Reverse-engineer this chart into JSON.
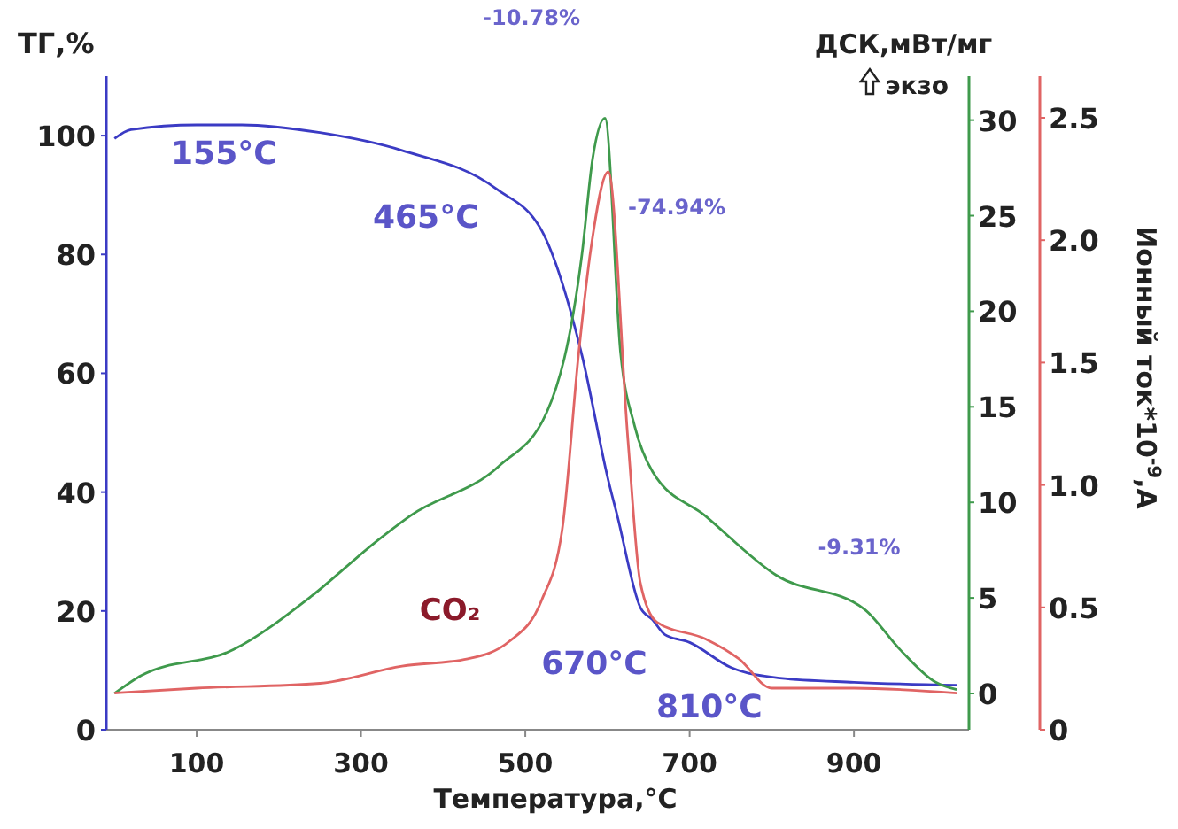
{
  "chart_data": {
    "type": "line",
    "ylabel": "ТГ,%",
    "y2label": "ДСК,мВт/мг",
    "y3label": "Ионный ток*10$^{-9}$,A",
    "xlabel": "Температура,°C",
    "xlim": [
      -10,
      1040
    ],
    "xticks": [
      100,
      300,
      500,
      700,
      900
    ],
    "ylim": [
      0,
      110
    ],
    "yticks": [
      0,
      20,
      40,
      60,
      80,
      100
    ],
    "y2lim": [
      -1.9,
      32.3
    ],
    "y2ticks": [
      0,
      5,
      10,
      15,
      20,
      25,
      30
    ],
    "y3lim": [
      0,
      2.67
    ],
    "y3ticks": [
      0,
      {
        "value": 0.5,
        "label": "0.5"
      },
      {
        "value": 1,
        "label": "1.0"
      },
      {
        "value": 1.5,
        "label": "1.5"
      },
      {
        "value": 2,
        "label": "2.0"
      },
      {
        "value": 2.5,
        "label": "2.5"
      }
    ],
    "grid": false,
    "marker": "none",
    "line_style": "solid",
    "series": [
      {
        "color": "#3b3bc4",
        "axis": "y",
        "x": [
          0,
          20,
          100,
          155,
          250,
          350,
          465,
          520,
          569,
          601,
          612,
          640,
          655,
          670,
          700,
          750,
          810,
          900,
          1025
        ],
        "values": [
          99.5,
          101,
          101.8,
          101.8,
          100.5,
          97.5,
          91,
          84,
          63,
          42,
          36,
          20.6,
          18.5,
          16,
          14.7,
          10.5,
          8.7,
          8,
          7.5
        ]
      },
      {
        "color": "#3f9a4c",
        "axis": "y2",
        "x": [
          0,
          31,
          145,
          240,
          317,
          360,
          468,
          526,
          569,
          582,
          597,
          616,
          633,
          655,
          719,
          805,
          913,
          956,
          999,
          1025
        ],
        "values": [
          0,
          0.9,
          2.3,
          5.1,
          7.9,
          9.3,
          11.9,
          14.7,
          23,
          28,
          30.1,
          17.8,
          14,
          11.6,
          9.3,
          6.2,
          4.4,
          2.3,
          0.6,
          0.2
        ]
      },
      {
        "name": "CO₂",
        "color": "#e06464",
        "axis": "y3",
        "x": [
          0,
          100,
          250,
          350,
          430,
          480,
          520,
          545,
          565,
          580,
          601,
          625,
          640,
          660,
          720,
          760,
          800,
          900,
          1025
        ],
        "values": [
          0.15,
          0.17,
          0.19,
          0.26,
          0.29,
          0.36,
          0.53,
          0.82,
          1.54,
          1.97,
          2.28,
          1.18,
          0.6,
          0.44,
          0.37,
          0.29,
          0.17,
          0.17,
          0.15
        ]
      }
    ],
    "annotations": [
      {
        "text": "155°C",
        "x": 155,
        "y": 101.8
      },
      {
        "text": "465°C",
        "x": 465,
        "y": 91
      },
      {
        "text": "670°C",
        "x": 670,
        "y": 16
      },
      {
        "text": "810°C",
        "x": 810,
        "y": 8.7
      },
      "-10.78%",
      "-74.94%",
      "-9.31%",
      "экзо"
    ]
  }
}
